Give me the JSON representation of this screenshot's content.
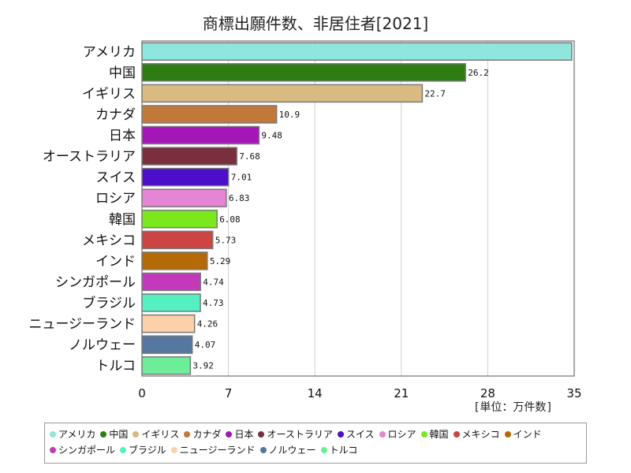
{
  "chart_data": {
    "type": "bar",
    "orientation": "horizontal",
    "title": "商標出願件数、非居住者[2021]",
    "unit": "[単位：万件数]",
    "categories": [
      "アメリカ",
      "中国",
      "イギリス",
      "カナダ",
      "日本",
      "オーストラリア",
      "スイス",
      "ロシア",
      "韓国",
      "メキシコ",
      "インド",
      "シンガポール",
      "ブラジル",
      "ニュージーランド",
      "ノルウェー",
      "トルコ"
    ],
    "values": [
      34.8,
      26.2,
      22.7,
      10.9,
      9.48,
      7.68,
      7.01,
      6.83,
      6.08,
      5.73,
      5.29,
      4.74,
      4.73,
      4.26,
      4.07,
      3.92
    ],
    "value_labels": [
      "",
      "26.2",
      "22.7",
      "10.9",
      "9.48",
      "7.68",
      "7.01",
      "6.83",
      "6.08",
      "5.73",
      "5.29",
      "4.74",
      "4.73",
      "4.26",
      "4.07",
      "3.92"
    ],
    "colors": [
      "#8fe6dc",
      "#2e7d12",
      "#d9bb82",
      "#c27838",
      "#a516b9",
      "#7a2f3f",
      "#4b0fc9",
      "#e585d5",
      "#7ae81c",
      "#cc4444",
      "#b56a08",
      "#c23aba",
      "#55f0c2",
      "#fdd0aa",
      "#5677a0",
      "#6ded98"
    ],
    "xticks": [
      "0",
      "7",
      "14",
      "21",
      "28",
      "35"
    ],
    "xlim": [
      0,
      35
    ],
    "grid": true,
    "legend_position": "bottom"
  }
}
